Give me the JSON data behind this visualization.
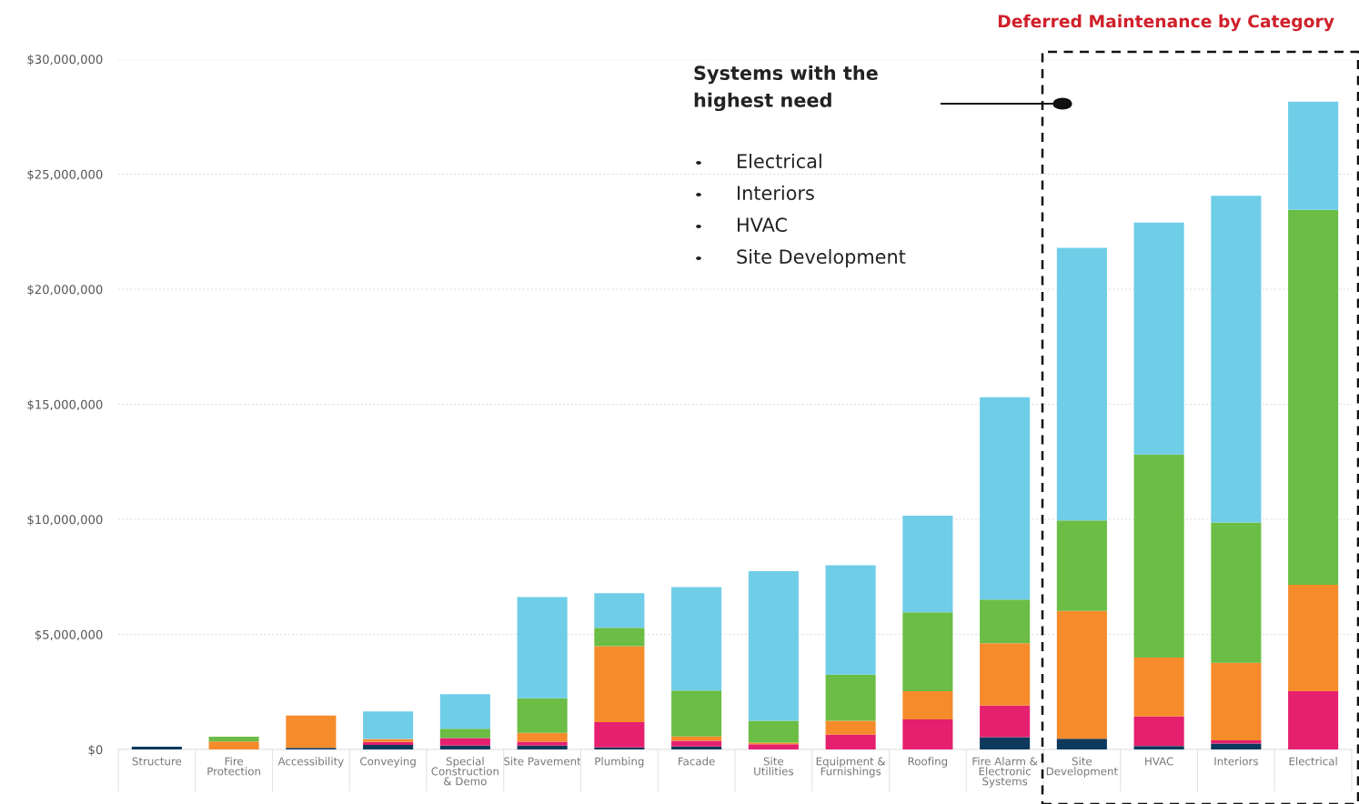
{
  "chart_data": {
    "type": "bar",
    "stacked": true,
    "title": "Deferred Maintenance by Category",
    "categories": [
      "Structure",
      "Fire Protection",
      "Accessibility",
      "Conveying",
      "Special Construction & Demo",
      "Site Pavement",
      "Plumbing",
      "Facade",
      "Site Utilities",
      "Equipment & Furnishings",
      "Roofing",
      "Fire Alarm & Electronic Systems",
      "Site Development",
      "HVAC",
      "Interiors",
      "Electrical"
    ],
    "series": [
      {
        "color": "#0d3a5c",
        "values": [
          120000,
          0,
          70000,
          200000,
          170000,
          170000,
          90000,
          130000,
          0,
          0,
          0,
          530000,
          460000,
          150000,
          260000,
          0
        ]
      },
      {
        "color": "#e5206f",
        "values": [
          0,
          0,
          0,
          130000,
          320000,
          170000,
          1100000,
          250000,
          230000,
          640000,
          1300000,
          1380000,
          0,
          1280000,
          140000,
          2530000
        ]
      },
      {
        "color": "#f68b2c",
        "values": [
          0,
          350000,
          1400000,
          120000,
          0,
          380000,
          3300000,
          180000,
          70000,
          610000,
          1230000,
          2700000,
          5560000,
          2560000,
          3360000,
          4620000
        ]
      },
      {
        "color": "#6bbd45",
        "values": [
          0,
          200000,
          0,
          0,
          410000,
          1500000,
          800000,
          2000000,
          950000,
          2000000,
          3430000,
          1900000,
          3930000,
          8830000,
          6100000,
          16300000
        ]
      },
      {
        "color": "#6fcde8",
        "values": [
          0,
          0,
          0,
          1200000,
          1500000,
          4400000,
          1500000,
          4500000,
          6500000,
          4750000,
          4200000,
          8800000,
          11850000,
          10080000,
          14200000,
          4700000
        ]
      }
    ],
    "ylim": [
      0,
      30000000
    ],
    "yticks": [
      {
        "value": 0,
        "label": "$0"
      },
      {
        "value": 5000000,
        "label": "$5,000,000"
      },
      {
        "value": 10000000,
        "label": "$10,000,000"
      },
      {
        "value": 15000000,
        "label": "$15,000,000"
      },
      {
        "value": 20000000,
        "label": "$20,000,000"
      },
      {
        "value": 25000000,
        "label": "$25,000,000"
      },
      {
        "value": 30000000,
        "label": "$30,000,000"
      }
    ],
    "grid": "y",
    "annotations": [
      "Systems with the highest need",
      "Electrical",
      "Interiors",
      "HVAC",
      "Site Development"
    ]
  }
}
